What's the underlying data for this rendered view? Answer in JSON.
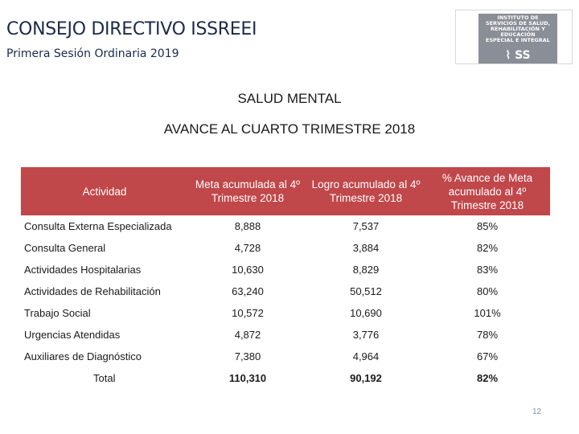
{
  "header": {
    "title": "CONSEJO DIRECTIVO ISSREEI",
    "subtitle": "Primera Sesión Ordinaria 2019"
  },
  "logo": {
    "lines": [
      "INSTITUTO DE",
      "SERVICIOS DE SALUD,",
      "REHABILITACIÓN Y",
      "EDUCACIÓN",
      "ESPECIAL E INTEGRAL"
    ],
    "mark": "SS"
  },
  "section": {
    "heading": "SALUD MENTAL",
    "subheading": "AVANCE AL CUARTO TRIMESTRE 2018"
  },
  "table": {
    "headers": [
      "Actividad",
      "Meta acumulada al 4º Trimestre 2018",
      "Logro acumulado al 4º Trimestre 2018",
      "% Avance de Meta acumulado al 4º Trimestre 2018"
    ],
    "rows": [
      [
        "Consulta Externa Especializada",
        "8,888",
        "7,537",
        "85%"
      ],
      [
        "Consulta General",
        "4,728",
        "3,884",
        "82%"
      ],
      [
        "Actividades Hospitalarias",
        "10,630",
        "8,829",
        "83%"
      ],
      [
        "Actividades de Rehabilitación",
        "63,240",
        "50,512",
        "80%"
      ],
      [
        "Trabajo Social",
        "10,572",
        "10,690",
        "101%"
      ],
      [
        "Urgencias Atendidas",
        "4,872",
        "3,776",
        "78%"
      ],
      [
        "Auxiliares de Diagnóstico",
        "7,380",
        "4,964",
        "67%"
      ]
    ],
    "total": [
      "Total",
      "110,310",
      "90,192",
      "82%"
    ],
    "header_color": "#c0474a"
  },
  "page_number": "12"
}
